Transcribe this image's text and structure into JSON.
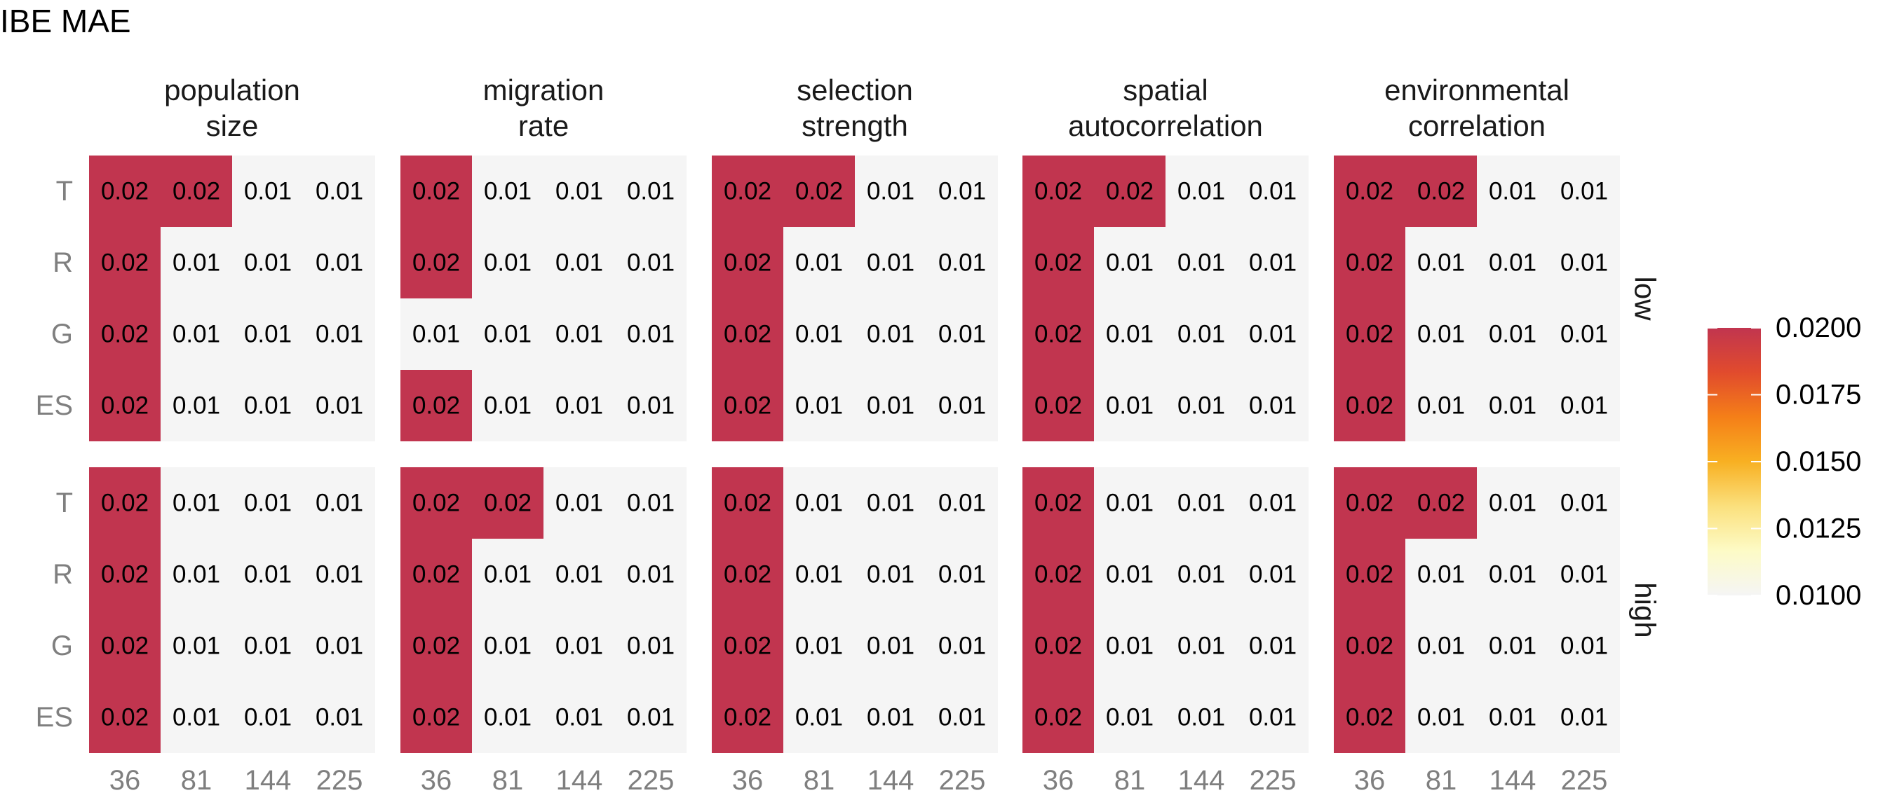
{
  "chart_data": {
    "type": "heatmap",
    "title": "IBE MAE",
    "facet_columns": [
      "population\nsize",
      "migration\nrate",
      "selection\nstrength",
      "spatial\nautocorrelation",
      "environmental\ncorrelation"
    ],
    "facet_rows": [
      "low",
      "high"
    ],
    "x_categories": [
      "36",
      "81",
      "144",
      "225"
    ],
    "y_categories": [
      "T",
      "R",
      "G",
      "ES"
    ],
    "panels": [
      {
        "column": "population\nsize",
        "row": "low",
        "labels": [
          [
            "0.02",
            "0.02",
            "0.01",
            "0.01"
          ],
          [
            "0.02",
            "0.01",
            "0.01",
            "0.01"
          ],
          [
            "0.02",
            "0.01",
            "0.01",
            "0.01"
          ],
          [
            "0.02",
            "0.01",
            "0.01",
            "0.01"
          ]
        ],
        "highlight": [
          [
            1,
            1,
            0,
            0
          ],
          [
            1,
            0,
            0,
            0
          ],
          [
            1,
            0,
            0,
            0
          ],
          [
            1,
            0,
            0,
            0
          ]
        ]
      },
      {
        "column": "migration\nrate",
        "row": "low",
        "labels": [
          [
            "0.02",
            "0.01",
            "0.01",
            "0.01"
          ],
          [
            "0.02",
            "0.01",
            "0.01",
            "0.01"
          ],
          [
            "0.01",
            "0.01",
            "0.01",
            "0.01"
          ],
          [
            "0.02",
            "0.01",
            "0.01",
            "0.01"
          ]
        ],
        "highlight": [
          [
            1,
            0,
            0,
            0
          ],
          [
            1,
            0,
            0,
            0
          ],
          [
            0,
            0,
            0,
            0
          ],
          [
            1,
            0,
            0,
            0
          ]
        ]
      },
      {
        "column": "selection\nstrength",
        "row": "low",
        "labels": [
          [
            "0.02",
            "0.02",
            "0.01",
            "0.01"
          ],
          [
            "0.02",
            "0.01",
            "0.01",
            "0.01"
          ],
          [
            "0.02",
            "0.01",
            "0.01",
            "0.01"
          ],
          [
            "0.02",
            "0.01",
            "0.01",
            "0.01"
          ]
        ],
        "highlight": [
          [
            1,
            1,
            0,
            0
          ],
          [
            1,
            0,
            0,
            0
          ],
          [
            1,
            0,
            0,
            0
          ],
          [
            1,
            0,
            0,
            0
          ]
        ]
      },
      {
        "column": "spatial\nautocorrelation",
        "row": "low",
        "labels": [
          [
            "0.02",
            "0.02",
            "0.01",
            "0.01"
          ],
          [
            "0.02",
            "0.01",
            "0.01",
            "0.01"
          ],
          [
            "0.02",
            "0.01",
            "0.01",
            "0.01"
          ],
          [
            "0.02",
            "0.01",
            "0.01",
            "0.01"
          ]
        ],
        "highlight": [
          [
            1,
            1,
            0,
            0
          ],
          [
            1,
            0,
            0,
            0
          ],
          [
            1,
            0,
            0,
            0
          ],
          [
            1,
            0,
            0,
            0
          ]
        ]
      },
      {
        "column": "environmental\ncorrelation",
        "row": "low",
        "labels": [
          [
            "0.02",
            "0.02",
            "0.01",
            "0.01"
          ],
          [
            "0.02",
            "0.01",
            "0.01",
            "0.01"
          ],
          [
            "0.02",
            "0.01",
            "0.01",
            "0.01"
          ],
          [
            "0.02",
            "0.01",
            "0.01",
            "0.01"
          ]
        ],
        "highlight": [
          [
            1,
            1,
            0,
            0
          ],
          [
            1,
            0,
            0,
            0
          ],
          [
            1,
            0,
            0,
            0
          ],
          [
            1,
            0,
            0,
            0
          ]
        ]
      },
      {
        "column": "population\nsize",
        "row": "high",
        "labels": [
          [
            "0.02",
            "0.01",
            "0.01",
            "0.01"
          ],
          [
            "0.02",
            "0.01",
            "0.01",
            "0.01"
          ],
          [
            "0.02",
            "0.01",
            "0.01",
            "0.01"
          ],
          [
            "0.02",
            "0.01",
            "0.01",
            "0.01"
          ]
        ],
        "highlight": [
          [
            1,
            0,
            0,
            0
          ],
          [
            1,
            0,
            0,
            0
          ],
          [
            1,
            0,
            0,
            0
          ],
          [
            1,
            0,
            0,
            0
          ]
        ]
      },
      {
        "column": "migration\nrate",
        "row": "high",
        "labels": [
          [
            "0.02",
            "0.02",
            "0.01",
            "0.01"
          ],
          [
            "0.02",
            "0.01",
            "0.01",
            "0.01"
          ],
          [
            "0.02",
            "0.01",
            "0.01",
            "0.01"
          ],
          [
            "0.02",
            "0.01",
            "0.01",
            "0.01"
          ]
        ],
        "highlight": [
          [
            1,
            1,
            0,
            0
          ],
          [
            1,
            0,
            0,
            0
          ],
          [
            1,
            0,
            0,
            0
          ],
          [
            1,
            0,
            0,
            0
          ]
        ]
      },
      {
        "column": "selection\nstrength",
        "row": "high",
        "labels": [
          [
            "0.02",
            "0.01",
            "0.01",
            "0.01"
          ],
          [
            "0.02",
            "0.01",
            "0.01",
            "0.01"
          ],
          [
            "0.02",
            "0.01",
            "0.01",
            "0.01"
          ],
          [
            "0.02",
            "0.01",
            "0.01",
            "0.01"
          ]
        ],
        "highlight": [
          [
            1,
            0,
            0,
            0
          ],
          [
            1,
            0,
            0,
            0
          ],
          [
            1,
            0,
            0,
            0
          ],
          [
            1,
            0,
            0,
            0
          ]
        ]
      },
      {
        "column": "spatial\nautocorrelation",
        "row": "high",
        "labels": [
          [
            "0.02",
            "0.01",
            "0.01",
            "0.01"
          ],
          [
            "0.02",
            "0.01",
            "0.01",
            "0.01"
          ],
          [
            "0.02",
            "0.01",
            "0.01",
            "0.01"
          ],
          [
            "0.02",
            "0.01",
            "0.01",
            "0.01"
          ]
        ],
        "highlight": [
          [
            1,
            0,
            0,
            0
          ],
          [
            1,
            0,
            0,
            0
          ],
          [
            1,
            0,
            0,
            0
          ],
          [
            1,
            0,
            0,
            0
          ]
        ]
      },
      {
        "column": "environmental\ncorrelation",
        "row": "high",
        "labels": [
          [
            "0.02",
            "0.02",
            "0.01",
            "0.01"
          ],
          [
            "0.02",
            "0.01",
            "0.01",
            "0.01"
          ],
          [
            "0.02",
            "0.01",
            "0.01",
            "0.01"
          ],
          [
            "0.02",
            "0.01",
            "0.01",
            "0.01"
          ]
        ],
        "highlight": [
          [
            1,
            1,
            0,
            0
          ],
          [
            1,
            0,
            0,
            0
          ],
          [
            1,
            0,
            0,
            0
          ],
          [
            1,
            0,
            0,
            0
          ]
        ]
      }
    ],
    "colors": {
      "highlight_cell": "#c1354f",
      "normal_cell": "#f5f5f5",
      "colorbar_stops": [
        "#c1354f",
        "#e14b2d",
        "#f57f18",
        "#f8b022",
        "#fbe07d",
        "#fdfbc6",
        "#f5f5f5"
      ]
    },
    "legend": {
      "position": "right",
      "tick_labels": [
        "0.0200",
        "0.0175",
        "0.0150",
        "0.0125",
        "0.0100"
      ],
      "range": [
        0.01,
        0.02
      ]
    }
  }
}
